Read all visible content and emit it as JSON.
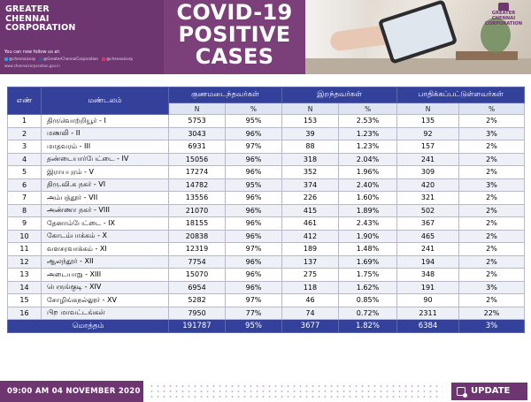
{
  "header": {
    "corporation": [
      "GREATER",
      "CHENNAI",
      "CORPORATION"
    ],
    "follow_text": "You can now follow us at:",
    "social": [
      {
        "icon": "twitter-icon",
        "handle": "@chennaicorp",
        "color": "#1da1f2"
      },
      {
        "icon": "facebook-icon",
        "handle": "@GreaterChennaiCorporation",
        "color": "#3b5998"
      },
      {
        "icon": "instagram-icon",
        "handle": "@chennaicorp",
        "color": "#e1306c"
      }
    ],
    "website": "www.chennaicorporation.gov.in",
    "title_lines": [
      "COVID-19",
      "POSITIVE",
      "CASES"
    ],
    "photo_logo": [
      "GREATER",
      "CHENNAI",
      "CORPORATION"
    ]
  },
  "table": {
    "headers": {
      "no": "எண்",
      "zone": "மண்டலம்",
      "recovered": "குணமடைந்தவர்கள்",
      "deaths": "இறந்தவர்கள்",
      "active": "பாதிக்கப்பட்டுள்ளவர்கள்",
      "n": "N",
      "pct": "%"
    },
    "rows": [
      {
        "no": "1",
        "zone": "திருவொற்றியூர் - I",
        "rec_n": "5753",
        "rec_p": "95%",
        "dth_n": "153",
        "dth_p": "2.53%",
        "act_n": "135",
        "act_p": "2%"
      },
      {
        "no": "2",
        "zone": "மணலி - II",
        "rec_n": "3043",
        "rec_p": "96%",
        "dth_n": "39",
        "dth_p": "1.23%",
        "act_n": "92",
        "act_p": "3%"
      },
      {
        "no": "3",
        "zone": "மாதவரம் - III",
        "rec_n": "6931",
        "rec_p": "97%",
        "dth_n": "88",
        "dth_p": "1.23%",
        "act_n": "157",
        "act_p": "2%"
      },
      {
        "no": "4",
        "zone": "தண்டையார்பேட்டை - IV",
        "rec_n": "15056",
        "rec_p": "96%",
        "dth_n": "318",
        "dth_p": "2.04%",
        "act_n": "241",
        "act_p": "2%"
      },
      {
        "no": "5",
        "zone": "இராயபுரம் - V",
        "rec_n": "17274",
        "rec_p": "96%",
        "dth_n": "352",
        "dth_p": "1.96%",
        "act_n": "309",
        "act_p": "2%"
      },
      {
        "no": "6",
        "zone": "திரு.வி.க நகர் - VI",
        "rec_n": "14782",
        "rec_p": "95%",
        "dth_n": "374",
        "dth_p": "2.40%",
        "act_n": "420",
        "act_p": "3%"
      },
      {
        "no": "7",
        "zone": "அம்பத்தூர் - VII",
        "rec_n": "13556",
        "rec_p": "96%",
        "dth_n": "226",
        "dth_p": "1.60%",
        "act_n": "321",
        "act_p": "2%"
      },
      {
        "no": "8",
        "zone": "அண்ணா நகர் - VIII",
        "rec_n": "21070",
        "rec_p": "96%",
        "dth_n": "415",
        "dth_p": "1.89%",
        "act_n": "502",
        "act_p": "2%"
      },
      {
        "no": "9",
        "zone": "தேனாம்பேட்டை - IX",
        "rec_n": "18155",
        "rec_p": "96%",
        "dth_n": "461",
        "dth_p": "2.43%",
        "act_n": "367",
        "act_p": "2%"
      },
      {
        "no": "10",
        "zone": "கோடம்பாக்கம் - X",
        "rec_n": "20838",
        "rec_p": "96%",
        "dth_n": "412",
        "dth_p": "1.90%",
        "act_n": "465",
        "act_p": "2%"
      },
      {
        "no": "11",
        "zone": "வளசரவாக்கம் - XI",
        "rec_n": "12319",
        "rec_p": "97%",
        "dth_n": "189",
        "dth_p": "1.48%",
        "act_n": "241",
        "act_p": "2%"
      },
      {
        "no": "12",
        "zone": "ஆலந்தூர் - XII",
        "rec_n": "7754",
        "rec_p": "96%",
        "dth_n": "137",
        "dth_p": "1.69%",
        "act_n": "194",
        "act_p": "2%"
      },
      {
        "no": "13",
        "zone": "அடையாறு - XIII",
        "rec_n": "15070",
        "rec_p": "96%",
        "dth_n": "275",
        "dth_p": "1.75%",
        "act_n": "348",
        "act_p": "2%"
      },
      {
        "no": "14",
        "zone": "பெருங்குடி - XIV",
        "rec_n": "6954",
        "rec_p": "96%",
        "dth_n": "118",
        "dth_p": "1.62%",
        "act_n": "191",
        "act_p": "3%"
      },
      {
        "no": "15",
        "zone": "சோழிங்கநல்லூர் - XV",
        "rec_n": "5282",
        "rec_p": "97%",
        "dth_n": "46",
        "dth_p": "0.85%",
        "act_n": "90",
        "act_p": "2%"
      },
      {
        "no": "16",
        "zone": "பிற மாவட்டங்கள்",
        "rec_n": "7950",
        "rec_p": "77%",
        "dth_n": "74",
        "dth_p": "0.72%",
        "act_n": "2311",
        "act_p": "22%"
      }
    ],
    "total": {
      "label": "மொத்தம்",
      "rec_n": "191787",
      "rec_p": "95%",
      "dth_n": "3677",
      "dth_p": "1.82%",
      "act_n": "6384",
      "act_p": "3%"
    }
  },
  "footer": {
    "datetime": "09:00 AM 04 NOVEMBER 2020",
    "update_label": "UPDATE"
  },
  "colors": {
    "brand_purple": "#6d3670",
    "table_header_blue": "#33419a"
  }
}
